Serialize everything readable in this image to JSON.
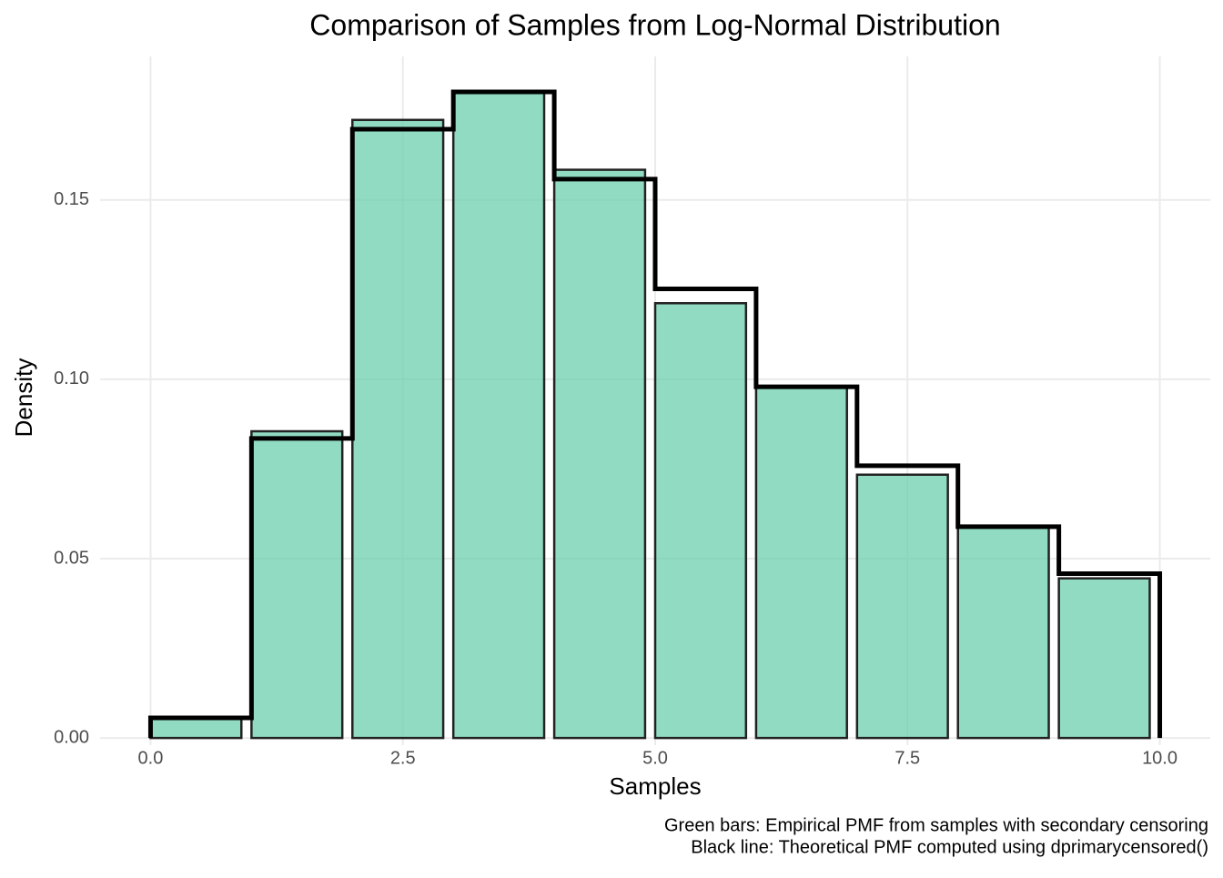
{
  "chart_data": {
    "type": "bar",
    "title": "Comparison of Samples from Log-Normal Distribution",
    "xlabel": "Samples",
    "ylabel": "Density",
    "captions": [
      "Green bars: Empirical PMF from samples with secondary censoring",
      "Black line: Theoretical PMF computed using dprimarycensored()"
    ],
    "x": [
      0,
      1,
      2,
      3,
      4,
      5,
      6,
      7,
      8,
      9
    ],
    "series": [
      {
        "type": "bar",
        "color": "#66cdaa",
        "values": [
          0.0056,
          0.0855,
          0.1723,
          0.1801,
          0.1584,
          0.1212,
          0.0981,
          0.0734,
          0.0587,
          0.0445
        ]
      },
      {
        "type": "step",
        "color": "#000000",
        "values": [
          0.0056,
          0.0835,
          0.1697,
          0.1801,
          0.1558,
          0.1252,
          0.0979,
          0.0759,
          0.0589,
          0.0458
        ]
      }
    ],
    "xlim": [
      -0.5,
      10.5
    ],
    "ylim": [
      -0.002,
      0.19
    ],
    "xticks": [
      {
        "value": 0,
        "label": "0.0"
      },
      {
        "value": 2.5,
        "label": "2.5"
      },
      {
        "value": 5,
        "label": "5.0"
      },
      {
        "value": 7.5,
        "label": "7.5"
      },
      {
        "value": 10,
        "label": "10.0"
      }
    ],
    "yticks": [
      {
        "value": 0,
        "label": "0.00"
      },
      {
        "value": 0.05,
        "label": "0.05"
      },
      {
        "value": 0.1,
        "label": "0.10"
      },
      {
        "value": 0.15,
        "label": "0.15"
      }
    ],
    "grid": true
  }
}
